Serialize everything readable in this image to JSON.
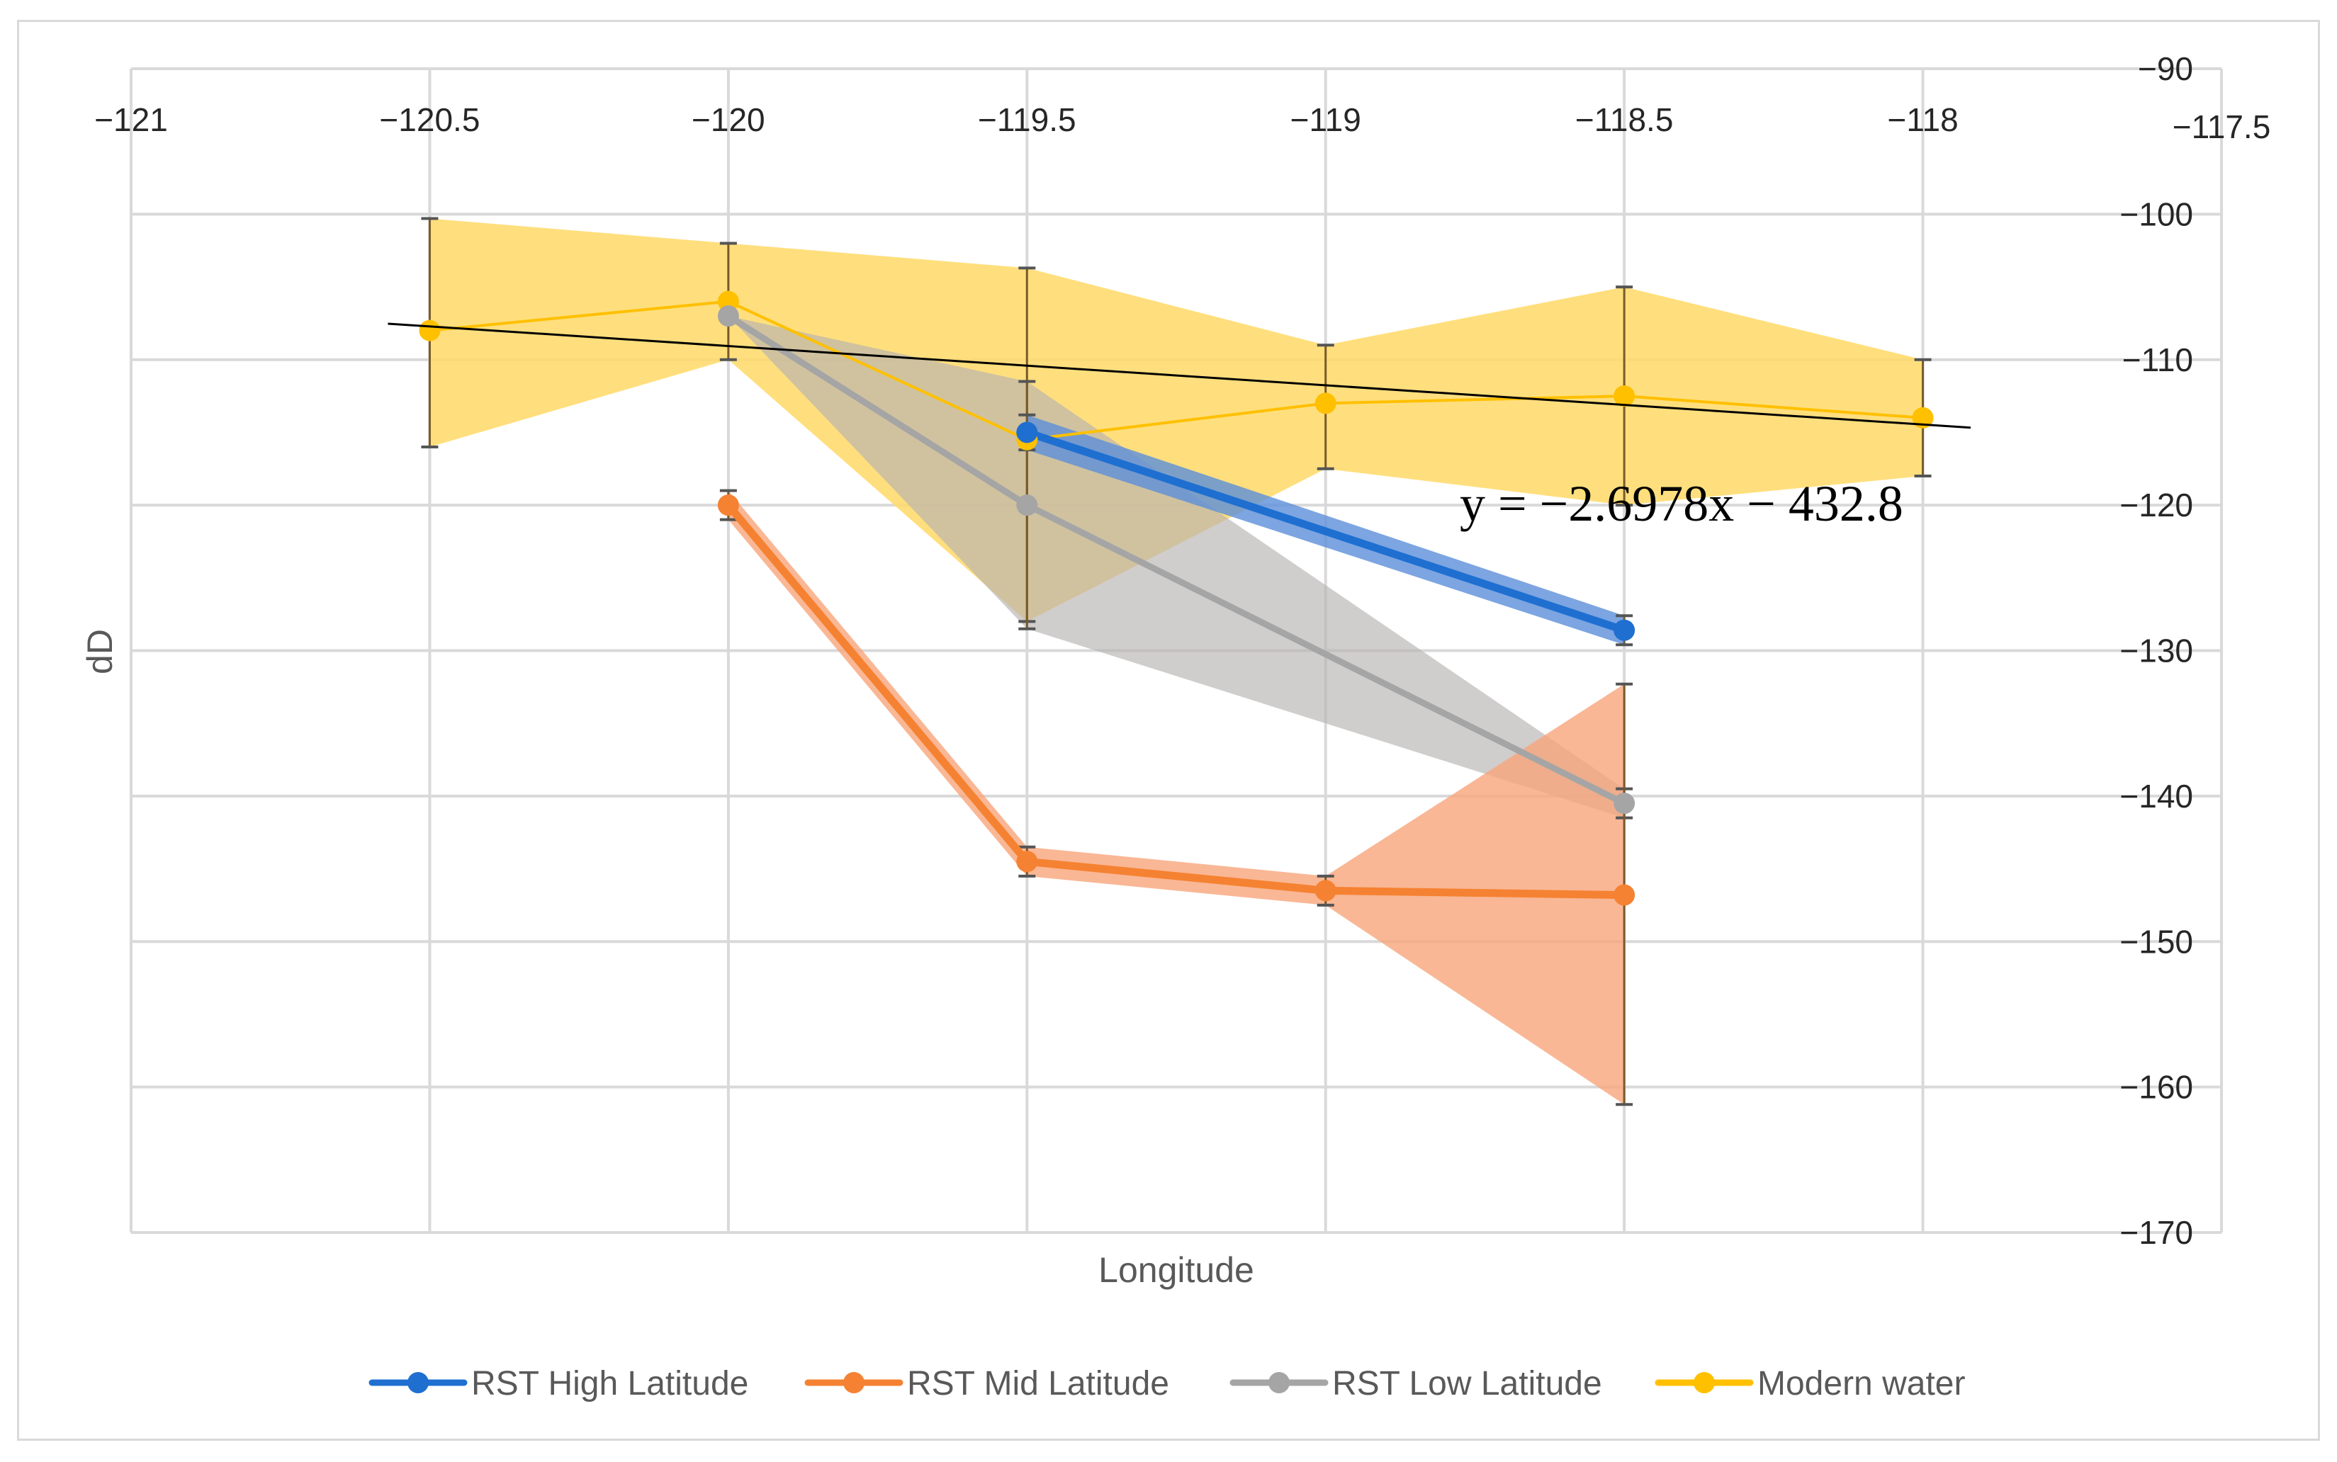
{
  "chart_data": {
    "type": "line",
    "title": "",
    "xlabel": "Longitude",
    "ylabel": "dD",
    "xlim": [
      -121,
      -117.5
    ],
    "ylim": [
      -170,
      -90
    ],
    "x_ticks": [
      -121,
      -120.5,
      -120,
      -119.5,
      -119,
      -118.5,
      -118,
      -117.5
    ],
    "x_tick_labels": [
      "−121",
      "−120.5",
      "−120",
      "−119.5",
      "−119",
      "−118.5",
      "−118",
      "−117.5"
    ],
    "y_ticks": [
      -90,
      -100,
      -110,
      -120,
      -130,
      -140,
      -150,
      -160,
      -170
    ],
    "y_tick_labels": [
      "−90",
      "−100",
      "−110",
      "−120",
      "−130",
      "−140",
      "−150",
      "−160",
      "−170"
    ],
    "grid": true,
    "legend_position": "bottom",
    "trendline": {
      "series": "Modern water",
      "equation": "y = −2.6978x − 432.8",
      "slope": -2.6978,
      "intercept": -432.8,
      "x_range": [
        -120.57,
        -117.92
      ]
    },
    "series": [
      {
        "name": "Modern water",
        "color": "#ffc000",
        "band_color": "#ffd966",
        "points": [
          {
            "x": -120.5,
            "y": -108,
            "lo": -116,
            "hi": -100.3
          },
          {
            "x": -120,
            "y": -106,
            "lo": -110,
            "hi": -102
          },
          {
            "x": -119.5,
            "y": -115.5,
            "lo": -128,
            "hi": -103.7
          },
          {
            "x": -119,
            "y": -113,
            "lo": -117.5,
            "hi": -109
          },
          {
            "x": -118.5,
            "y": -112.5,
            "lo": -120,
            "hi": -105
          },
          {
            "x": -118,
            "y": -114,
            "lo": -118,
            "hi": -110
          }
        ]
      },
      {
        "name": "RST Low Latitude",
        "color": "#a5a5a5",
        "band_color": "#b7b2b2",
        "points": [
          {
            "x": -120,
            "y": -107,
            "lo": -107,
            "hi": -107
          },
          {
            "x": -119.5,
            "y": -120,
            "lo": -128.5,
            "hi": -111.5
          },
          {
            "x": -118.5,
            "y": -140.5,
            "lo": -141.5,
            "hi": -139.5
          }
        ]
      },
      {
        "name": "RST High Latitude",
        "color": "#1f6fd1",
        "band_color": "#5b8fd9",
        "points": [
          {
            "x": -119.5,
            "y": -115,
            "lo": -116.2,
            "hi": -113.8
          },
          {
            "x": -118.5,
            "y": -128.6,
            "lo": -129.6,
            "hi": -127.6
          }
        ]
      },
      {
        "name": "RST Mid Latitude",
        "color": "#f58232",
        "band_color": "#f8a57a",
        "points": [
          {
            "x": -120,
            "y": -120,
            "lo": -121,
            "hi": -119
          },
          {
            "x": -119.5,
            "y": -144.5,
            "lo": -145.5,
            "hi": -143.5
          },
          {
            "x": -119,
            "y": -146.5,
            "lo": -147.5,
            "hi": -145.5
          },
          {
            "x": -118.5,
            "y": -146.8,
            "lo": -161.2,
            "hi": -132.3
          }
        ]
      }
    ],
    "legend": [
      "RST High Latitude",
      "RST Mid Latitude",
      "RST Low Latitude",
      "Modern water"
    ]
  }
}
